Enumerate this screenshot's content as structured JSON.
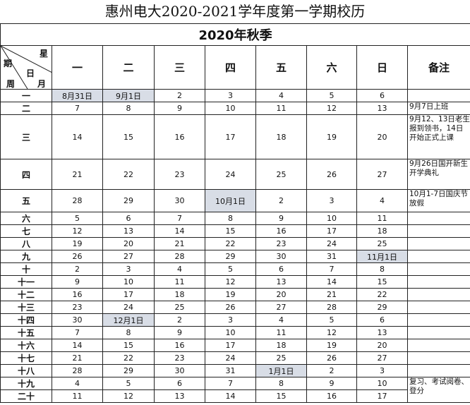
{
  "header": {
    "title": "惠州电大2020-2021学年度第一学期校历",
    "season": "2020年秋季",
    "corner": {
      "star": "星",
      "period": "期",
      "day": "日",
      "month": "月",
      "week": "周"
    },
    "weekdays": [
      "一",
      "二",
      "三",
      "四",
      "五",
      "六",
      "日"
    ],
    "notes_heading": "备注"
  },
  "table": {
    "rows": [
      {
        "week": "一",
        "days": [
          "8月31日",
          "9月1日",
          2,
          3,
          4,
          5,
          6
        ]
      },
      {
        "week": "二",
        "days": [
          7,
          8,
          9,
          10,
          11,
          12,
          13
        ],
        "note": "9月7日上班"
      },
      {
        "week": "三",
        "days": [
          14,
          15,
          16,
          17,
          18,
          19,
          20
        ],
        "note": "9月12、13日老生报到领书，14日开始正式上课"
      },
      {
        "week": "四",
        "days": [
          21,
          22,
          23,
          24,
          25,
          26,
          27
        ],
        "note": "9月26日国开新生开学典礼"
      },
      {
        "week": "五",
        "days": [
          28,
          29,
          30,
          "10月1日",
          2,
          3,
          4
        ],
        "note": "10月1-7日国庆节放假"
      },
      {
        "week": "六",
        "days": [
          5,
          6,
          7,
          8,
          9,
          10,
          11
        ]
      },
      {
        "week": "七",
        "days": [
          12,
          13,
          14,
          15,
          16,
          17,
          18
        ]
      },
      {
        "week": "八",
        "days": [
          19,
          20,
          21,
          22,
          23,
          24,
          25
        ]
      },
      {
        "week": "九",
        "days": [
          26,
          27,
          28,
          29,
          30,
          31,
          "11月1日"
        ]
      },
      {
        "week": "十",
        "days": [
          2,
          3,
          4,
          5,
          6,
          7,
          8
        ]
      },
      {
        "week": "十一",
        "days": [
          9,
          10,
          11,
          12,
          13,
          14,
          15
        ]
      },
      {
        "week": "十二",
        "days": [
          16,
          17,
          18,
          19,
          20,
          21,
          22
        ]
      },
      {
        "week": "十三",
        "days": [
          23,
          24,
          25,
          26,
          27,
          28,
          29
        ]
      },
      {
        "week": "十四",
        "days": [
          30,
          "12月1日",
          2,
          3,
          4,
          5,
          6
        ]
      },
      {
        "week": "十五",
        "days": [
          7,
          8,
          9,
          10,
          11,
          12,
          13
        ]
      },
      {
        "week": "十六",
        "days": [
          14,
          15,
          16,
          17,
          18,
          19,
          20
        ]
      },
      {
        "week": "十七",
        "days": [
          21,
          22,
          23,
          24,
          25,
          26,
          27
        ]
      },
      {
        "week": "十八",
        "days": [
          28,
          29,
          30,
          31,
          "1月1日",
          2,
          3
        ]
      },
      {
        "week": "十九",
        "days": [
          4,
          5,
          6,
          7,
          8,
          9,
          10
        ],
        "note": "复习、考试阅卷、登分"
      },
      {
        "week": "二十",
        "days": [
          11,
          12,
          13,
          14,
          15,
          16,
          17
        ]
      }
    ]
  }
}
